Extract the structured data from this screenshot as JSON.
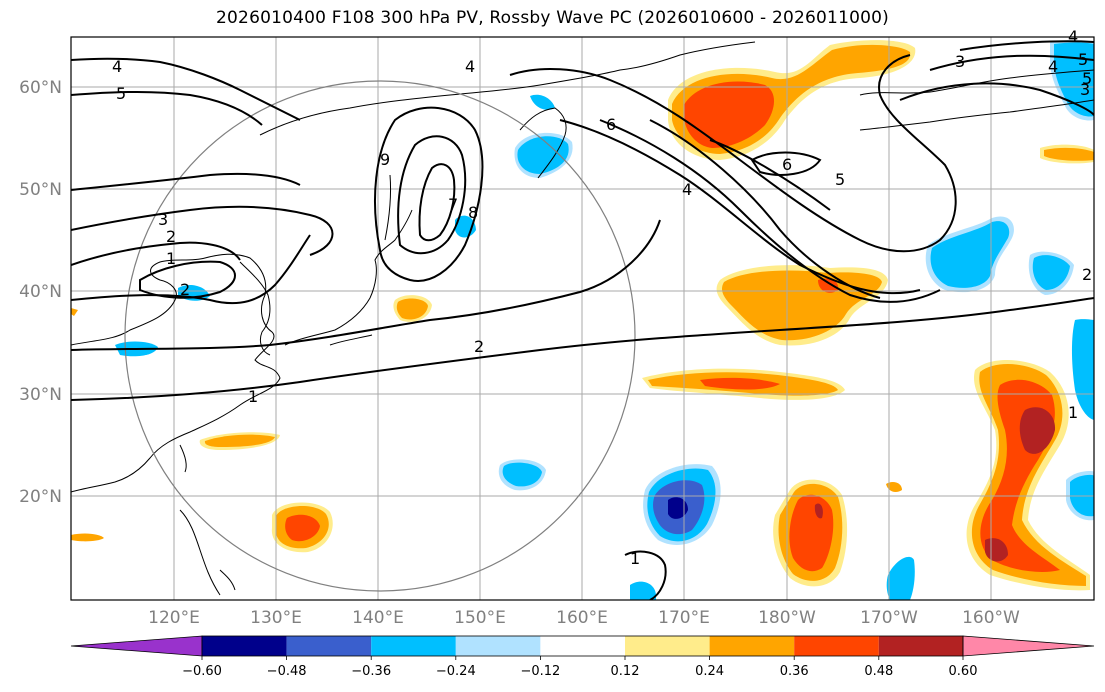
{
  "title": "2026010400 F108 300 hPa PV, Rossby Wave PC (2026010600 - 2026011000)",
  "lat_labels": [
    "60°N",
    "50°N",
    "40°N",
    "30°N",
    "20°N"
  ],
  "lon_labels": [
    "120°E",
    "130°E",
    "140°E",
    "150°E",
    "160°E",
    "170°E",
    "180°W",
    "170°W",
    "160°W"
  ],
  "colorbar": {
    "ticks": [
      "−0.60",
      "−0.48",
      "−0.36",
      "−0.24",
      "−0.12",
      "0.12",
      "0.24",
      "0.36",
      "0.48",
      "0.60"
    ],
    "colors": [
      "#9932cc",
      "#00008b",
      "#3a5fcd",
      "#00bfff",
      "#b0e2ff",
      "#ffffff",
      "#ffec8b",
      "#ffa500",
      "#ff4500",
      "#b22222",
      "#ff87a8"
    ]
  },
  "contour_labels": [
    "4",
    "5",
    "4",
    "3",
    "2",
    "1",
    "2",
    "1",
    "2",
    "3",
    "4",
    "5",
    "6",
    "7",
    "8",
    "9",
    "6",
    "5",
    "4",
    "3",
    "4",
    "5",
    "1",
    "1",
    "2"
  ],
  "colors": {
    "gridline": "#aaaaaa",
    "coastline": "#000000",
    "circle": "#808080"
  }
}
